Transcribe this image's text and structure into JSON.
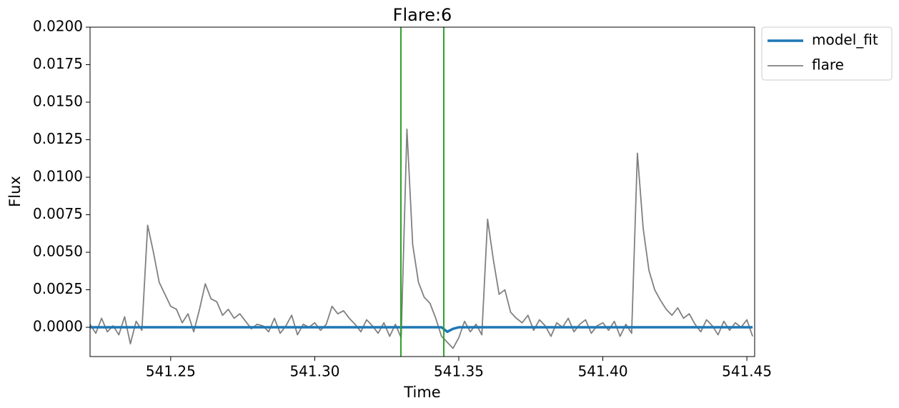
{
  "chart_data": {
    "type": "line",
    "title": "Flare:6",
    "xlabel": "Time",
    "ylabel": "Flux",
    "x": [
      541.222,
      541.224,
      541.226,
      541.228,
      541.23,
      541.232,
      541.234,
      541.236,
      541.238,
      541.24,
      541.242,
      541.244,
      541.246,
      541.248,
      541.25,
      541.252,
      541.254,
      541.256,
      541.258,
      541.26,
      541.262,
      541.264,
      541.266,
      541.268,
      541.27,
      541.272,
      541.274,
      541.276,
      541.278,
      541.28,
      541.282,
      541.284,
      541.286,
      541.288,
      541.29,
      541.292,
      541.294,
      541.296,
      541.298,
      541.3,
      541.302,
      541.304,
      541.306,
      541.308,
      541.31,
      541.312,
      541.314,
      541.316,
      541.318,
      541.32,
      541.322,
      541.324,
      541.326,
      541.328,
      541.33,
      541.332,
      541.334,
      541.336,
      541.338,
      541.34,
      541.342,
      541.344,
      541.346,
      541.348,
      541.35,
      541.352,
      541.354,
      541.356,
      541.358,
      541.36,
      541.362,
      541.364,
      541.366,
      541.368,
      541.37,
      541.372,
      541.374,
      541.376,
      541.378,
      541.38,
      541.382,
      541.384,
      541.386,
      541.388,
      541.39,
      541.392,
      541.394,
      541.396,
      541.398,
      541.4,
      541.402,
      541.404,
      541.406,
      541.408,
      541.41,
      541.412,
      541.414,
      541.416,
      541.418,
      541.42,
      541.422,
      541.424,
      541.426,
      541.428,
      541.43,
      541.432,
      541.434,
      541.436,
      541.438,
      541.44,
      541.442,
      541.444,
      541.446,
      541.448,
      541.45,
      541.452
    ],
    "series": [
      {
        "name": "model_fit",
        "color": "#1f77b4",
        "width": 3.5,
        "values": [
          0,
          0,
          0,
          0,
          0,
          0,
          0,
          0,
          0,
          0,
          0,
          0,
          0,
          0,
          0,
          0,
          0,
          0,
          0,
          0,
          0,
          0,
          0,
          0,
          0,
          0,
          0,
          0,
          0,
          0,
          0,
          0,
          0,
          0,
          0,
          0,
          0,
          0,
          0,
          0,
          0,
          0,
          0,
          0,
          0,
          0,
          0,
          0,
          0,
          0,
          0,
          0,
          0,
          0,
          0,
          0,
          0,
          0,
          0,
          0,
          0,
          0,
          -0.0003,
          -0.0001,
          0,
          0,
          0,
          0,
          0,
          0,
          0,
          0,
          0,
          0,
          0,
          0,
          0,
          0,
          0,
          0,
          0,
          0,
          0,
          0,
          0,
          0,
          0,
          0,
          0,
          0,
          0,
          0,
          0,
          0,
          0,
          0,
          0,
          0,
          0,
          0,
          0,
          0,
          0,
          0,
          0,
          0,
          0,
          0,
          0,
          0,
          0,
          0,
          0,
          0,
          0,
          0
        ]
      },
      {
        "name": "flare",
        "color": "#808080",
        "width": 1.8,
        "values": [
          0.0002,
          -0.0004,
          0.0006,
          -0.0003,
          0.0001,
          -0.0005,
          0.0007,
          -0.0011,
          0.0004,
          -0.0002,
          0.0068,
          0.005,
          0.003,
          0.0022,
          0.0014,
          0.0012,
          0.0003,
          0.0009,
          -0.0003,
          0.0012,
          0.0029,
          0.0019,
          0.0017,
          0.0008,
          0.0012,
          0.0006,
          0.0009,
          0.0004,
          -0.0001,
          0.0002,
          0.0001,
          -0.0003,
          0.0006,
          -0.0004,
          0.0001,
          0.0008,
          -0.0005,
          0.0002,
          0.0,
          0.0003,
          -0.0002,
          0.0002,
          0.0014,
          0.0009,
          0.0011,
          0.0006,
          0.0002,
          -0.0003,
          0.0005,
          0.0001,
          -0.0004,
          0.0003,
          -0.0006,
          0.0002,
          -0.0007,
          0.0132,
          0.0055,
          0.003,
          0.002,
          0.0016,
          0.0006,
          -0.0006,
          -0.001,
          -0.0014,
          -0.0007,
          0.0004,
          -0.0003,
          0.0002,
          -0.0005,
          0.0072,
          0.0045,
          0.0022,
          0.0025,
          0.001,
          0.0006,
          0.0003,
          0.0008,
          -0.0002,
          0.0005,
          0.0001,
          -0.0006,
          0.0003,
          0.0,
          0.0006,
          -0.0003,
          0.0002,
          0.0005,
          -0.0004,
          0.0001,
          0.0003,
          -0.0002,
          0.0004,
          -0.0006,
          0.0002,
          -0.0004,
          0.0116,
          0.0066,
          0.0038,
          0.0025,
          0.0018,
          0.0012,
          0.0008,
          0.0013,
          0.0006,
          0.0009,
          0.0002,
          -0.0003,
          0.0005,
          0.0001,
          -0.0005,
          0.0004,
          -0.0002,
          0.0003,
          0.0,
          0.0005,
          -0.0006
        ]
      }
    ],
    "vlines": [
      541.3299,
      541.3448
    ],
    "vline_color": "#2ca02c",
    "xlim": [
      541.222,
      541.4527
    ],
    "ylim": [
      -0.00195,
      0.02
    ],
    "xticks": [
      541.25,
      {
        "value": 541.3,
        "label": "541.30"
      },
      541.35,
      {
        "value": 541.4,
        "label": "541.40"
      },
      541.45
    ],
    "yticks": [
      {
        "value": 0,
        "label": "0.0000"
      },
      {
        "value": 0.0025,
        "label": "0.0025"
      },
      {
        "value": 0.005,
        "label": "0.0050"
      },
      {
        "value": 0.0075,
        "label": "0.0075"
      },
      {
        "value": 0.01,
        "label": "0.0100"
      },
      {
        "value": 0.0125,
        "label": "0.0125"
      },
      {
        "value": 0.015,
        "label": "0.0150"
      },
      {
        "value": 0.0175,
        "label": "0.0175"
      },
      {
        "value": 0.02,
        "label": "0.0200"
      }
    ],
    "legend": "outside-upper-right"
  }
}
